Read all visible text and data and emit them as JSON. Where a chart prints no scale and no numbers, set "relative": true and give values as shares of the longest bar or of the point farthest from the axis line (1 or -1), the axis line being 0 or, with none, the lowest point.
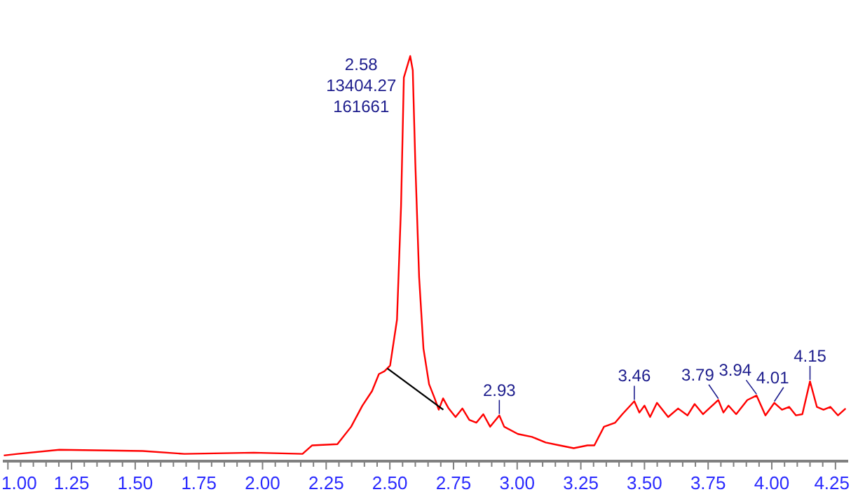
{
  "chart_data": {
    "type": "line",
    "relative": true,
    "xlim": [
      0.98,
      4.3
    ],
    "xticks": [
      {
        "value": 1,
        "label": "1.00"
      },
      {
        "value": 1.05,
        "label": null
      },
      {
        "value": 1.1,
        "label": null
      },
      {
        "value": 1.15,
        "label": null
      },
      {
        "value": 1.2,
        "label": null
      },
      {
        "value": 1.25,
        "label": "1.25"
      },
      {
        "value": 1.3,
        "label": null
      },
      {
        "value": 1.35,
        "label": null
      },
      {
        "value": 1.4,
        "label": null
      },
      {
        "value": 1.45,
        "label": null
      },
      {
        "value": 1.5,
        "label": "1.50"
      },
      {
        "value": 1.55,
        "label": null
      },
      {
        "value": 1.6,
        "label": null
      },
      {
        "value": 1.65,
        "label": null
      },
      {
        "value": 1.7,
        "label": null
      },
      {
        "value": 1.75,
        "label": "1.75"
      },
      {
        "value": 1.8,
        "label": null
      },
      {
        "value": 1.85,
        "label": null
      },
      {
        "value": 1.9,
        "label": null
      },
      {
        "value": 1.95,
        "label": null
      },
      {
        "value": 2,
        "label": "2.00"
      },
      {
        "value": 2.05,
        "label": null
      },
      {
        "value": 2.1,
        "label": null
      },
      {
        "value": 2.15,
        "label": null
      },
      {
        "value": 2.2,
        "label": null
      },
      {
        "value": 2.25,
        "label": "2.25"
      },
      {
        "value": 2.3,
        "label": null
      },
      {
        "value": 2.35,
        "label": null
      },
      {
        "value": 2.4,
        "label": null
      },
      {
        "value": 2.45,
        "label": null
      },
      {
        "value": 2.5,
        "label": "2.50"
      },
      {
        "value": 2.55,
        "label": null
      },
      {
        "value": 2.6,
        "label": null
      },
      {
        "value": 2.65,
        "label": null
      },
      {
        "value": 2.7,
        "label": null
      },
      {
        "value": 2.75,
        "label": "2.75"
      },
      {
        "value": 2.8,
        "label": null
      },
      {
        "value": 2.85,
        "label": null
      },
      {
        "value": 2.9,
        "label": null
      },
      {
        "value": 2.95,
        "label": null
      },
      {
        "value": 3,
        "label": "3.00"
      },
      {
        "value": 3.05,
        "label": null
      },
      {
        "value": 3.1,
        "label": null
      },
      {
        "value": 3.15,
        "label": null
      },
      {
        "value": 3.2,
        "label": null
      },
      {
        "value": 3.25,
        "label": "3.25"
      },
      {
        "value": 3.3,
        "label": null
      },
      {
        "value": 3.35,
        "label": null
      },
      {
        "value": 3.4,
        "label": null
      },
      {
        "value": 3.45,
        "label": null
      },
      {
        "value": 3.5,
        "label": "3.50"
      },
      {
        "value": 3.55,
        "label": null
      },
      {
        "value": 3.6,
        "label": null
      },
      {
        "value": 3.65,
        "label": null
      },
      {
        "value": 3.7,
        "label": null
      },
      {
        "value": 3.75,
        "label": "3.75"
      },
      {
        "value": 3.8,
        "label": null
      },
      {
        "value": 3.85,
        "label": null
      },
      {
        "value": 3.9,
        "label": null
      },
      {
        "value": 3.95,
        "label": null
      },
      {
        "value": 4,
        "label": "4.00"
      },
      {
        "value": 4.05,
        "label": null
      },
      {
        "value": 4.1,
        "label": null
      },
      {
        "value": 4.15,
        "label": null
      },
      {
        "value": 4.2,
        "label": null
      },
      {
        "value": 4.25,
        "label": "4.25"
      }
    ],
    "series": [
      {
        "color": "#ff0000",
        "x": [
          0.984,
          1.038,
          1.202,
          1.529,
          1.693,
          1.966,
          2.157,
          2.195,
          2.294,
          2.348,
          2.392,
          2.43,
          2.457,
          2.479,
          2.501,
          2.528,
          2.544,
          2.555,
          2.58,
          2.59,
          2.6,
          2.615,
          2.632,
          2.654,
          2.676,
          2.692,
          2.709,
          2.731,
          2.758,
          2.785,
          2.812,
          2.84,
          2.867,
          2.894,
          2.93,
          2.949,
          3.003,
          3.058,
          3.112,
          3.167,
          3.222,
          3.276,
          3.303,
          3.341,
          3.385,
          3.413,
          3.46,
          3.48,
          3.5,
          3.522,
          3.549,
          3.593,
          3.632,
          3.669,
          3.697,
          3.73,
          3.79,
          3.81,
          3.83,
          3.86,
          3.904,
          3.94,
          3.975,
          4.01,
          4.04,
          4.068,
          4.095,
          4.12,
          4.15,
          4.177,
          4.203,
          4.23,
          4.26,
          4.29
        ],
        "values": [
          0.014,
          0.018,
          0.028,
          0.025,
          0.018,
          0.021,
          0.018,
          0.039,
          0.042,
          0.085,
          0.137,
          0.173,
          0.215,
          0.222,
          0.236,
          0.349,
          0.63,
          0.947,
          1,
          0.965,
          0.736,
          0.454,
          0.278,
          0.19,
          0.155,
          0.127,
          0.155,
          0.13,
          0.109,
          0.13,
          0.102,
          0.095,
          0.116,
          0.085,
          0.113,
          0.085,
          0.067,
          0.06,
          0.046,
          0.039,
          0.032,
          0.039,
          0.039,
          0.085,
          0.095,
          0.116,
          0.148,
          0.12,
          0.137,
          0.109,
          0.144,
          0.109,
          0.13,
          0.113,
          0.141,
          0.116,
          0.151,
          0.12,
          0.137,
          0.116,
          0.151,
          0.162,
          0.113,
          0.144,
          0.127,
          0.134,
          0.113,
          0.116,
          0.197,
          0.134,
          0.127,
          0.134,
          0.113,
          0.13
        ]
      },
      {
        "color": "#000000",
        "x": [
          2.49,
          2.71
        ],
        "values": [
          0.229,
          0.127
        ]
      }
    ],
    "annotations": [
      {
        "text": "2.58\n13404.27\n161661",
        "x": 2.58,
        "y": 1
      },
      {
        "text": "2.93",
        "x": 2.93,
        "y": 0.113
      },
      {
        "text": "3.46",
        "x": 3.46,
        "y": 0.148
      },
      {
        "text": "3.79",
        "x": 3.79,
        "y": 0.151
      },
      {
        "text": "3.94",
        "x": 3.94,
        "y": 0.162
      },
      {
        "text": "4.01",
        "x": 4.01,
        "y": 0.144
      },
      {
        "text": "4.15",
        "x": 4.15,
        "y": 0.197
      }
    ]
  }
}
